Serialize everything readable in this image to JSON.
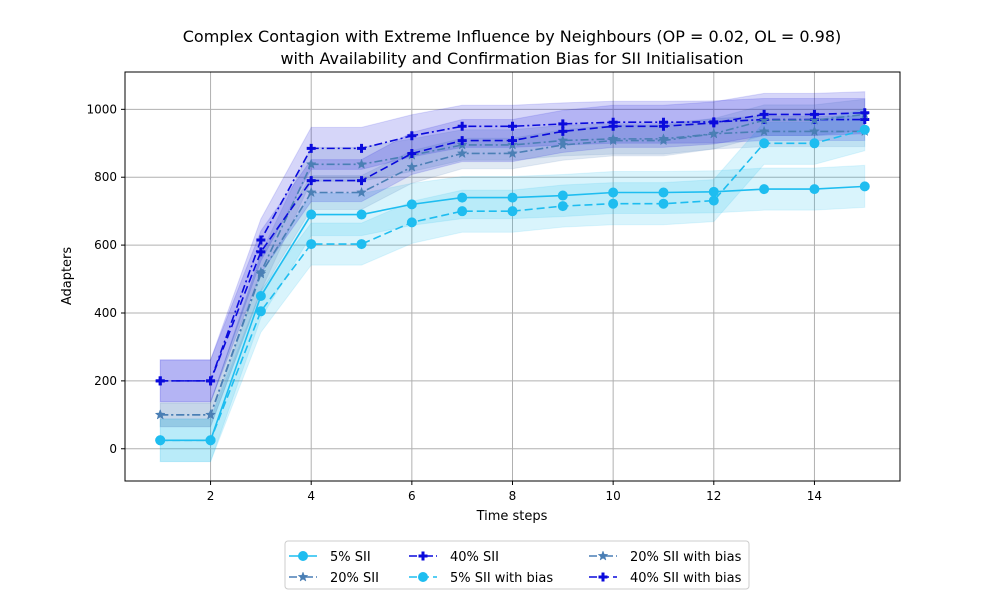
{
  "chart_data": {
    "type": "line",
    "title_line1": "Complex Contagion with Extreme Influence by Neighbours (OP = 0.02, OL = 0.98)",
    "title_line2": "with Availability and Confirmation Bias for SII Initialisation",
    "xlabel": "Time steps",
    "ylabel": "Adapters",
    "xlim": [
      0.3,
      15.7
    ],
    "ylim": [
      -95,
      1110
    ],
    "xticks": [
      2,
      4,
      6,
      8,
      10,
      12,
      14
    ],
    "yticks": [
      0,
      200,
      400,
      600,
      800,
      1000
    ],
    "grid": true,
    "legend_position": "bottom-center",
    "x": [
      1,
      2,
      3,
      4,
      5,
      6,
      7,
      8,
      9,
      10,
      11,
      12,
      13,
      14,
      15
    ],
    "series": [
      {
        "name": "5% SII",
        "color": "#1ebdf0",
        "dash": "solid",
        "marker": "circle",
        "values": [
          25,
          25,
          450,
          690,
          690,
          720,
          740,
          740,
          746,
          755,
          755,
          757,
          765,
          765,
          773
        ],
        "band": [
          63,
          63,
          65,
          62,
          62,
          62,
          62,
          62,
          62,
          62,
          62,
          62,
          62,
          62,
          62
        ]
      },
      {
        "name": "20% SII",
        "color": "#4a7fb5",
        "dash": "dashdot",
        "marker": "star",
        "values": [
          100,
          100,
          520,
          838,
          838,
          865,
          895,
          895,
          908,
          913,
          913,
          928,
          935,
          935,
          935
        ],
        "band": [
          35,
          35,
          55,
          50,
          50,
          48,
          45,
          45,
          45,
          45,
          45,
          45,
          45,
          45,
          45
        ]
      },
      {
        "name": "40% SII",
        "color": "#0a0adc",
        "dash": "dashdot",
        "marker": "plus",
        "values": [
          200,
          200,
          615,
          885,
          885,
          922,
          950,
          950,
          957,
          962,
          962,
          963,
          970,
          970,
          970
        ],
        "band": [
          62,
          62,
          62,
          62,
          62,
          62,
          62,
          62,
          62,
          62,
          62,
          62,
          62,
          62,
          62
        ]
      },
      {
        "name": "5% SII with bias",
        "color": "#1ebdf0",
        "dash": "dashed",
        "marker": "circle",
        "values": [
          25,
          25,
          405,
          603,
          603,
          667,
          700,
          700,
          715,
          722,
          722,
          731,
          900,
          900,
          940
        ],
        "band": [
          63,
          63,
          62,
          62,
          62,
          62,
          62,
          62,
          62,
          62,
          62,
          62,
          62,
          62,
          62
        ]
      },
      {
        "name": "20% SII with bias",
        "color": "#4a7fb5",
        "dash": "dashdot",
        "marker": "star",
        "values": [
          100,
          100,
          515,
          755,
          755,
          830,
          870,
          870,
          895,
          908,
          908,
          928,
          968,
          968,
          985
        ],
        "band": [
          35,
          35,
          55,
          50,
          50,
          48,
          45,
          45,
          45,
          45,
          45,
          45,
          45,
          45,
          45
        ]
      },
      {
        "name": "40% SII with bias",
        "color": "#0a0adc",
        "dash": "dashed",
        "marker": "plus",
        "values": [
          200,
          200,
          580,
          790,
          790,
          870,
          908,
          908,
          935,
          950,
          950,
          960,
          985,
          985,
          990
        ],
        "band": [
          62,
          62,
          62,
          62,
          62,
          62,
          62,
          62,
          62,
          62,
          62,
          62,
          62,
          62,
          62
        ]
      }
    ]
  }
}
